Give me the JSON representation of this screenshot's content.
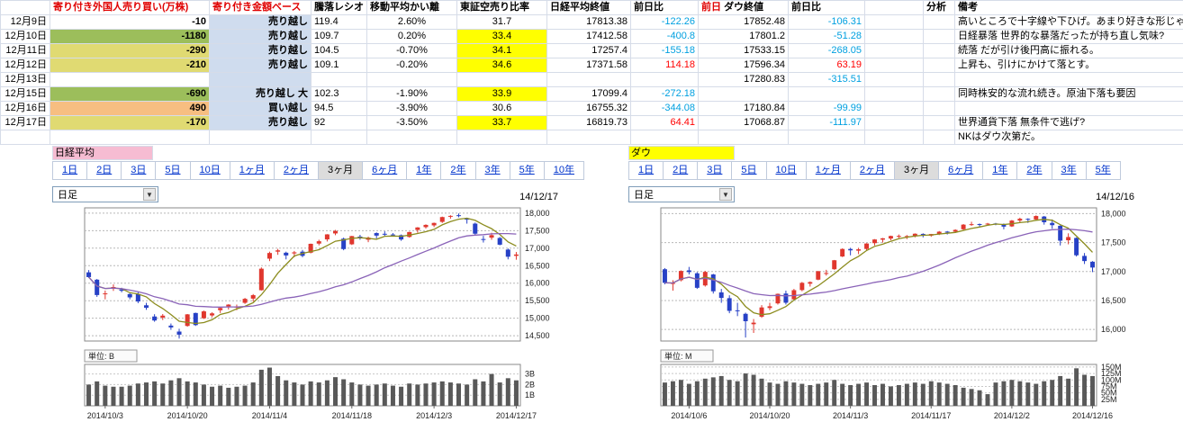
{
  "colors": {
    "green": "#9CBE5B",
    "yellow": "#E0DA72",
    "orange": "#F7BE81",
    "lightblue": "#CFDCEE",
    "highlight": "#FFFF00",
    "pos": "#FF0000",
    "neg": "#00A0E0",
    "link_blue": "#0033CC",
    "up_candle": "#E0372E",
    "down_candle": "#2741C6",
    "ma_short": "#8C8C1E",
    "ma_long": "#8A63B8",
    "volume_bar": "#595959"
  },
  "table": {
    "headers": {
      "foreign": "寄り付き外国人売り買い(万株)",
      "amount": "寄り付き金額ベース",
      "ratio": "騰落レシオ",
      "ma_dev": "移動平均かい離",
      "short_ratio": "東証空売り比率",
      "nikkei_close": "日経平均終値",
      "nikkei_chg": "前日比",
      "prev_label": "前日",
      "dow_close": "ダウ終値",
      "dow_chg": "前日比",
      "analysis": "分析",
      "remarks": "備考"
    },
    "rows": [
      {
        "date": "12月9日",
        "foreign": "-10",
        "foreign_bg": null,
        "amount": "売り越し",
        "ratio": "119.4",
        "ma_dev": "2.60%",
        "short_ratio": "31.7",
        "short_hl": false,
        "nikkei_close": "17813.38",
        "nikkei_chg": "-122.26",
        "dow_close": "17852.48",
        "dow_chg": "-106.31",
        "analysis": "",
        "remarks": "高いところで十字線や下ひげ。あまり好きな形じゃ"
      },
      {
        "date": "12月10日",
        "foreign": "-1180",
        "foreign_bg": "green",
        "amount": "売り越し",
        "ratio": "109.7",
        "ma_dev": "0.20%",
        "short_ratio": "33.4",
        "short_hl": true,
        "nikkei_close": "17412.58",
        "nikkei_chg": "-400.8",
        "dow_close": "17801.2",
        "dow_chg": "-51.28",
        "analysis": "",
        "remarks": "日経暴落 世界的な暴落だったが持ち直し気味?"
      },
      {
        "date": "12月11日",
        "foreign": "-290",
        "foreign_bg": "yellow",
        "amount": "売り越し",
        "ratio": "104.5",
        "ma_dev": "-0.70%",
        "short_ratio": "34.1",
        "short_hl": true,
        "nikkei_close": "17257.4",
        "nikkei_chg": "-155.18",
        "dow_close": "17533.15",
        "dow_chg": "-268.05",
        "analysis": "",
        "remarks": "続落 だが引け後円高に振れる。"
      },
      {
        "date": "12月12日",
        "foreign": "-210",
        "foreign_bg": "yellow",
        "amount": "売り越し",
        "ratio": "109.1",
        "ma_dev": "-0.20%",
        "short_ratio": "34.6",
        "short_hl": true,
        "nikkei_close": "17371.58",
        "nikkei_chg": "114.18",
        "dow_close": "17596.34",
        "dow_chg": "63.19",
        "analysis": "",
        "remarks": "上昇も、引けにかけて落とす。"
      },
      {
        "date": "12月13日",
        "foreign": "",
        "foreign_bg": null,
        "amount": "",
        "ratio": "",
        "ma_dev": "",
        "short_ratio": "",
        "short_hl": false,
        "nikkei_close": "",
        "nikkei_chg": "",
        "dow_close": "17280.83",
        "dow_chg": "-315.51",
        "analysis": "",
        "remarks": ""
      },
      {
        "date": "12月15日",
        "foreign": "-690",
        "foreign_bg": "green",
        "amount": "売り越し 大",
        "ratio": "102.3",
        "ma_dev": "-1.90%",
        "short_ratio": "33.9",
        "short_hl": true,
        "nikkei_close": "17099.4",
        "nikkei_chg": "-272.18",
        "dow_close": "",
        "dow_chg": "",
        "analysis": "",
        "remarks": "同時株安的な流れ続き。原油下落も要因"
      },
      {
        "date": "12月16日",
        "foreign": "490",
        "foreign_bg": "orange",
        "amount": "買い越し",
        "ratio": "94.5",
        "ma_dev": "-3.90%",
        "short_ratio": "30.6",
        "short_hl": false,
        "nikkei_close": "16755.32",
        "nikkei_chg": "-344.08",
        "dow_close": "17180.84",
        "dow_chg": "-99.99",
        "analysis": "",
        "remarks": ""
      },
      {
        "date": "12月17日",
        "foreign": "-170",
        "foreign_bg": "yellow",
        "amount": "売り越し",
        "ratio": "92",
        "ma_dev": "-3.50%",
        "short_ratio": "33.7",
        "short_hl": true,
        "nikkei_close": "16819.73",
        "nikkei_chg": "64.41",
        "dow_close": "17068.87",
        "dow_chg": "-111.97",
        "analysis": "",
        "remarks": "世界通貨下落 無条件で逃げ?"
      },
      {
        "date": "",
        "foreign": "",
        "foreign_bg": null,
        "amount": "",
        "ratio": "",
        "ma_dev": "",
        "short_ratio": "",
        "short_hl": false,
        "nikkei_close": "",
        "nikkei_chg": "",
        "dow_close": "",
        "dow_chg": "",
        "analysis": "",
        "remarks": "NKはダウ次第だ。"
      }
    ]
  },
  "panels": [
    {
      "label": "日経平均",
      "label_bg": "#F6BCD2",
      "selected_tab": "3ヶ月",
      "tabs": [
        "1日",
        "2日",
        "3日",
        "5日",
        "10日",
        "1ヶ月",
        "2ヶ月",
        "3ヶ月",
        "6ヶ月",
        "1年",
        "2年",
        "3年",
        "5年",
        "10年"
      ]
    },
    {
      "label": "ダウ",
      "label_bg": "#FFFF00",
      "selected_tab": "3ヶ月",
      "tabs": [
        "1日",
        "2日",
        "3日",
        "5日",
        "10日",
        "1ヶ月",
        "2ヶ月",
        "3ヶ月",
        "6ヶ月",
        "1年",
        "2年",
        "3年",
        "5年"
      ]
    }
  ],
  "chart_data": [
    {
      "id": "nikkei",
      "type": "candlestick",
      "title": "日経平均",
      "interval": "日足",
      "as_of": "14/12/17",
      "unit_label": "単位: B",
      "ylim": [
        14350,
        18150
      ],
      "y_ticks": [
        18000,
        17500,
        17000,
        16500,
        16000,
        15500,
        15000,
        14500
      ],
      "vol_max": 3.9,
      "vol_ticks": [
        {
          "v": 3,
          "label": "3B"
        },
        {
          "v": 2,
          "label": "2B"
        },
        {
          "v": 1,
          "label": "1B"
        }
      ],
      "x_labels": [
        "2014/10/3",
        "2014/10/20",
        "2014/11/4",
        "2014/11/18",
        "2014/12/3",
        "2014/12/17"
      ],
      "x_label_idx": [
        2,
        12,
        22,
        32,
        42,
        52
      ],
      "ma_windows": [
        5,
        25
      ],
      "candles": [
        [
          16310,
          16375,
          16150,
          16174
        ],
        [
          16100,
          16120,
          15610,
          15662
        ],
        [
          15690,
          15790,
          15540,
          15709
        ],
        [
          15890,
          15965,
          15780,
          15891
        ],
        [
          15820,
          15870,
          15740,
          15784
        ],
        [
          15690,
          15710,
          15540,
          15595
        ],
        [
          15690,
          15740,
          15430,
          15479
        ],
        [
          15370,
          15440,
          15240,
          15300
        ],
        [
          15050,
          15115,
          14900,
          14936
        ],
        [
          15020,
          15120,
          14950,
          15074
        ],
        [
          14790,
          14850,
          14670,
          14738
        ],
        [
          14620,
          14700,
          14420,
          14532
        ],
        [
          14780,
          15120,
          14760,
          15111
        ],
        [
          15150,
          15160,
          14780,
          14804
        ],
        [
          15000,
          15220,
          14980,
          15196
        ],
        [
          15080,
          15170,
          15030,
          15139
        ],
        [
          15230,
          15300,
          15150,
          15292
        ],
        [
          15340,
          15400,
          15250,
          15389
        ],
        [
          15320,
          15390,
          15230,
          15329
        ],
        [
          15440,
          15580,
          15410,
          15554
        ],
        [
          15560,
          15690,
          15480,
          15658
        ],
        [
          15800,
          16450,
          15790,
          16414
        ],
        [
          16700,
          16900,
          16630,
          16862
        ],
        [
          16900,
          16980,
          16810,
          16937
        ],
        [
          16870,
          16900,
          16680,
          16792
        ],
        [
          16850,
          16920,
          16740,
          16880
        ],
        [
          16900,
          16950,
          16740,
          16781
        ],
        [
          16870,
          17130,
          16850,
          17124
        ],
        [
          17130,
          17240,
          17080,
          17197
        ],
        [
          17250,
          17400,
          17190,
          17393
        ],
        [
          17420,
          17520,
          17370,
          17491
        ],
        [
          17270,
          17300,
          16940,
          16974
        ],
        [
          17110,
          17350,
          17090,
          17344
        ],
        [
          17330,
          17380,
          17240,
          17289
        ],
        [
          17240,
          17330,
          17170,
          17300
        ],
        [
          17430,
          17450,
          17280,
          17358
        ],
        [
          17410,
          17480,
          17350,
          17407
        ],
        [
          17390,
          17430,
          17330,
          17384
        ],
        [
          17370,
          17390,
          17210,
          17248
        ],
        [
          17320,
          17470,
          17300,
          17460
        ],
        [
          17520,
          17600,
          17440,
          17591
        ],
        [
          17600,
          17680,
          17560,
          17664
        ],
        [
          17650,
          17730,
          17600,
          17720
        ],
        [
          17750,
          17900,
          17720,
          17887
        ],
        [
          17900,
          17940,
          17840,
          17921
        ],
        [
          17940,
          17990,
          17880,
          17935
        ],
        [
          17850,
          17870,
          17700,
          17813
        ],
        [
          17700,
          17730,
          17380,
          17412
        ],
        [
          17260,
          17350,
          17160,
          17257
        ],
        [
          17300,
          17440,
          17240,
          17371
        ],
        [
          17290,
          17320,
          17080,
          17099
        ],
        [
          16960,
          16990,
          16680,
          16755
        ],
        [
          16780,
          16890,
          16670,
          16819
        ]
      ],
      "volumes": [
        2.0,
        2.3,
        1.9,
        1.8,
        1.8,
        1.9,
        2.1,
        2.2,
        2.3,
        2.1,
        2.4,
        2.6,
        2.3,
        2.2,
        2.0,
        1.8,
        1.9,
        1.7,
        1.8,
        1.9,
        2.2,
        3.4,
        3.6,
        2.8,
        2.4,
        2.2,
        2.0,
        2.3,
        2.2,
        2.4,
        2.7,
        2.5,
        2.2,
        2.0,
        1.9,
        2.0,
        2.1,
        1.9,
        1.8,
        2.1,
        2.0,
        2.1,
        2.2,
        2.3,
        2.2,
        2.1,
        2.0,
        2.5,
        2.3,
        3.0,
        2.2,
        2.6,
        2.4
      ]
    },
    {
      "id": "dow",
      "type": "candlestick",
      "title": "ダウ",
      "interval": "日足",
      "as_of": "14/12/16",
      "unit_label": "単位: M",
      "ylim": [
        15800,
        18100
      ],
      "y_ticks": [
        18000,
        17500,
        17000,
        16500,
        16000
      ],
      "vol_max": 160,
      "vol_ticks": [
        {
          "v": 150,
          "label": "150M"
        },
        {
          "v": 125,
          "label": "125M"
        },
        {
          "v": 100,
          "label": "100M"
        },
        {
          "v": 75,
          "label": "75M"
        },
        {
          "v": 50,
          "label": "50M"
        },
        {
          "v": 25,
          "label": "25M"
        }
      ],
      "x_labels": [
        "2014/10/6",
        "2014/10/20",
        "2014/11/3",
        "2014/11/17",
        "2014/12/2",
        "2014/12/16"
      ],
      "x_label_idx": [
        3,
        13,
        23,
        33,
        43,
        53
      ],
      "ma_windows": [
        5,
        25
      ],
      "candles": [
        [
          17040,
          17060,
          16780,
          16805
        ],
        [
          16800,
          16850,
          16670,
          16801
        ],
        [
          16850,
          17020,
          16830,
          17010
        ],
        [
          17020,
          17080,
          16950,
          16991
        ],
        [
          16970,
          16990,
          16700,
          16719
        ],
        [
          16760,
          17010,
          16740,
          16994
        ],
        [
          16950,
          16960,
          16620,
          16659
        ],
        [
          16640,
          16700,
          16460,
          16544
        ],
        [
          16540,
          16590,
          16280,
          16321
        ],
        [
          16330,
          16460,
          16230,
          16315
        ],
        [
          16270,
          16290,
          15860,
          16142
        ],
        [
          16090,
          16180,
          15940,
          16117
        ],
        [
          16220,
          16420,
          16200,
          16380
        ],
        [
          16370,
          16460,
          16330,
          16400
        ],
        [
          16450,
          16620,
          16430,
          16615
        ],
        [
          16620,
          16670,
          16430,
          16461
        ],
        [
          16520,
          16700,
          16510,
          16678
        ],
        [
          16680,
          16820,
          16660,
          16805
        ],
        [
          16790,
          16830,
          16740,
          16818
        ],
        [
          16860,
          17010,
          16850,
          17006
        ],
        [
          16970,
          17030,
          16930,
          16974
        ],
        [
          17040,
          17200,
          17030,
          17195
        ],
        [
          17260,
          17400,
          17250,
          17390
        ],
        [
          17390,
          17410,
          17280,
          17366
        ],
        [
          17360,
          17410,
          17300,
          17384
        ],
        [
          17390,
          17490,
          17370,
          17484
        ],
        [
          17490,
          17560,
          17450,
          17554
        ],
        [
          17550,
          17580,
          17500,
          17574
        ],
        [
          17570,
          17620,
          17540,
          17614
        ],
        [
          17610,
          17640,
          17580,
          17615
        ],
        [
          17610,
          17630,
          17560,
          17612
        ],
        [
          17610,
          17660,
          17590,
          17653
        ],
        [
          17650,
          17660,
          17590,
          17635
        ],
        [
          17620,
          17650,
          17600,
          17648
        ],
        [
          17650,
          17700,
          17630,
          17688
        ],
        [
          17690,
          17700,
          17640,
          17686
        ],
        [
          17690,
          17730,
          17670,
          17719
        ],
        [
          17730,
          17820,
          17720,
          17810
        ],
        [
          17810,
          17860,
          17790,
          17818
        ],
        [
          17820,
          17830,
          17780,
          17815
        ],
        [
          17820,
          17840,
          17800,
          17828
        ],
        [
          17830,
          17840,
          17800,
          17828
        ],
        [
          17820,
          17830,
          17730,
          17776
        ],
        [
          17780,
          17890,
          17770,
          17880
        ],
        [
          17880,
          17930,
          17850,
          17912
        ],
        [
          17910,
          17920,
          17840,
          17900
        ],
        [
          17900,
          17970,
          17880,
          17959
        ],
        [
          17950,
          17960,
          17810,
          17852
        ],
        [
          17840,
          17900,
          17740,
          17801
        ],
        [
          17790,
          17800,
          17450,
          17533
        ],
        [
          17540,
          17660,
          17470,
          17596
        ],
        [
          17580,
          17590,
          17260,
          17281
        ],
        [
          17270,
          17320,
          17130,
          17181
        ],
        [
          17170,
          17180,
          16990,
          17069
        ]
      ],
      "volumes": [
        90,
        95,
        100,
        85,
        95,
        105,
        110,
        115,
        100,
        95,
        125,
        120,
        105,
        90,
        85,
        95,
        90,
        85,
        80,
        85,
        90,
        100,
        85,
        80,
        85,
        90,
        80,
        85,
        75,
        80,
        85,
        90,
        85,
        95,
        90,
        85,
        80,
        70,
        65,
        60,
        45,
        90,
        95,
        100,
        95,
        90,
        85,
        95,
        100,
        115,
        105,
        145,
        120,
        115
      ]
    }
  ]
}
